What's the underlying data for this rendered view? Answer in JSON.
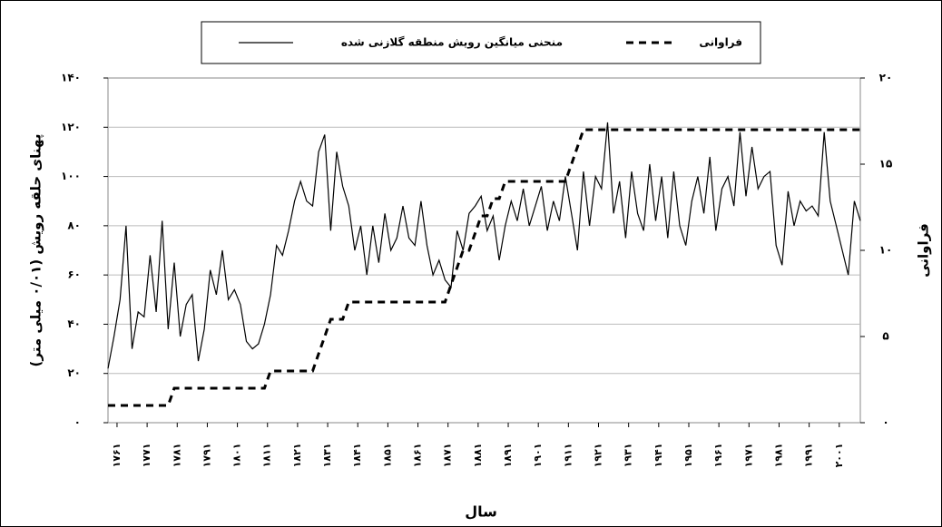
{
  "chart_data": {
    "type": "line",
    "x_label": "سال",
    "y_label": "پهنای حلقه رویش (۰/۰۱ میلی متر)",
    "y2_label": "فراوانی",
    "x": [
      1758,
      1760,
      1762,
      1764,
      1766,
      1768,
      1770,
      1772,
      1774,
      1776,
      1778,
      1780,
      1782,
      1784,
      1786,
      1788,
      1790,
      1792,
      1794,
      1796,
      1798,
      1800,
      1802,
      1804,
      1806,
      1808,
      1810,
      1812,
      1814,
      1816,
      1818,
      1820,
      1822,
      1824,
      1826,
      1828,
      1830,
      1832,
      1834,
      1836,
      1838,
      1840,
      1842,
      1844,
      1846,
      1848,
      1850,
      1852,
      1854,
      1856,
      1858,
      1860,
      1862,
      1864,
      1866,
      1868,
      1870,
      1872,
      1874,
      1876,
      1878,
      1880,
      1882,
      1884,
      1886,
      1888,
      1890,
      1892,
      1894,
      1896,
      1898,
      1900,
      1902,
      1904,
      1906,
      1908,
      1910,
      1912,
      1914,
      1916,
      1918,
      1920,
      1922,
      1924,
      1926,
      1928,
      1930,
      1932,
      1934,
      1936,
      1938,
      1940,
      1942,
      1944,
      1946,
      1948,
      1950,
      1952,
      1954,
      1956,
      1958,
      1960,
      1962,
      1964,
      1966,
      1968,
      1970,
      1972,
      1974,
      1976,
      1978,
      1980,
      1982,
      1984,
      1986,
      1988,
      1990,
      1992,
      1994,
      1996,
      1998,
      2000,
      2002,
      2004,
      2006,
      2008
    ],
    "series": [
      {
        "name": "منحنی میانگین رویش منطقه گلازنی شده",
        "color": "#000000",
        "style": "solid",
        "values": [
          22,
          35,
          50,
          80,
          30,
          45,
          43,
          68,
          45,
          82,
          38,
          65,
          35,
          48,
          52,
          25,
          38,
          62,
          52,
          70,
          50,
          54,
          48,
          33,
          30,
          32,
          40,
          52,
          72,
          68,
          78,
          90,
          98,
          90,
          88,
          110,
          117,
          78,
          110,
          96,
          88,
          70,
          80,
          60,
          80,
          65,
          85,
          70,
          75,
          88,
          75,
          72,
          90,
          72,
          60,
          66,
          58,
          55,
          78,
          70,
          85,
          88,
          92,
          78,
          84,
          66,
          80,
          90,
          82,
          95,
          80,
          88,
          96,
          78,
          90,
          82,
          100,
          85,
          70,
          102,
          80,
          100,
          95,
          122,
          85,
          98,
          75,
          102,
          85,
          78,
          105,
          82,
          100,
          75,
          102,
          80,
          72,
          90,
          100,
          85,
          108,
          78,
          95,
          100,
          88,
          118,
          92,
          112,
          95,
          100,
          102,
          72,
          64,
          94,
          80,
          90,
          86,
          88,
          84,
          118,
          90,
          80,
          70,
          60,
          90,
          82
        ]
      },
      {
        "name": "فراوانی",
        "color": "#000000",
        "style": "dashed",
        "axis": "y2",
        "values": [
          1,
          1,
          1,
          1,
          1,
          1,
          1,
          1,
          1,
          1,
          1,
          2,
          2,
          2,
          2,
          2,
          2,
          2,
          2,
          2,
          2,
          2,
          2,
          2,
          2,
          2,
          2,
          3,
          3,
          3,
          3,
          3,
          3,
          3,
          3,
          4,
          5,
          6,
          6,
          6,
          7,
          7,
          7,
          7,
          7,
          7,
          7,
          7,
          7,
          7,
          7,
          7,
          7,
          7,
          7,
          7,
          7,
          8,
          9,
          10,
          10,
          11,
          12,
          12,
          13,
          13,
          14,
          14,
          14,
          14,
          14,
          14,
          14,
          14,
          14,
          14,
          14,
          15,
          16,
          17,
          17,
          17,
          17,
          17,
          17,
          17,
          17,
          17,
          17,
          17,
          17,
          17,
          17,
          17,
          17,
          17,
          17,
          17,
          17,
          17,
          17,
          17,
          17,
          17,
          17,
          17,
          17,
          17,
          17,
          17,
          17,
          17,
          17,
          17,
          17,
          17,
          17,
          17,
          17,
          17,
          17,
          17,
          17,
          17,
          17,
          17
        ]
      }
    ],
    "xlim": [
      1758,
      2008
    ],
    "xticks": [
      {
        "value": 1761,
        "label": "۱۷۶۱"
      },
      {
        "value": 1771,
        "label": "۱۷۷۱"
      },
      {
        "value": 1781,
        "label": "۱۷۸۱"
      },
      {
        "value": 1791,
        "label": "۱۷۹۱"
      },
      {
        "value": 1801,
        "label": "۱۸۰۱"
      },
      {
        "value": 1811,
        "label": "۱۸۱۱"
      },
      {
        "value": 1821,
        "label": "۱۸۲۱"
      },
      {
        "value": 1831,
        "label": "۱۸۳۱"
      },
      {
        "value": 1841,
        "label": "۱۸۴۱"
      },
      {
        "value": 1851,
        "label": "۱۸۵۱"
      },
      {
        "value": 1861,
        "label": "۱۸۶۱"
      },
      {
        "value": 1871,
        "label": "۱۸۷۱"
      },
      {
        "value": 1881,
        "label": "۱۸۸۱"
      },
      {
        "value": 1891,
        "label": "۱۸۹۱"
      },
      {
        "value": 1901,
        "label": "۱۹۰۱"
      },
      {
        "value": 1911,
        "label": "۱۹۱۱"
      },
      {
        "value": 1921,
        "label": "۱۹۲۱"
      },
      {
        "value": 1931,
        "label": "۱۹۳۱"
      },
      {
        "value": 1941,
        "label": "۱۹۴۱"
      },
      {
        "value": 1951,
        "label": "۱۹۵۱"
      },
      {
        "value": 1961,
        "label": "۱۹۶۱"
      },
      {
        "value": 1971,
        "label": "۱۹۷۱"
      },
      {
        "value": 1981,
        "label": "۱۹۸۱"
      },
      {
        "value": 1991,
        "label": "۱۹۹۱"
      },
      {
        "value": 2001,
        "label": "۲۰۰۱"
      }
    ],
    "ylim": [
      0,
      140
    ],
    "yticks": [
      {
        "value": 0,
        "label": "۰"
      },
      {
        "value": 20,
        "label": "۲۰"
      },
      {
        "value": 40,
        "label": "۴۰"
      },
      {
        "value": 60,
        "label": "۶۰"
      },
      {
        "value": 80,
        "label": "۸۰"
      },
      {
        "value": 100,
        "label": "۱۰۰"
      },
      {
        "value": 120,
        "label": "۱۲۰"
      },
      {
        "value": 140,
        "label": "۱۴۰"
      }
    ],
    "y2lim": [
      0,
      20
    ],
    "y2ticks": [
      {
        "value": 0,
        "label": "۰"
      },
      {
        "value": 5,
        "label": "۵"
      },
      {
        "value": 10,
        "label": "۱۰"
      },
      {
        "value": 15,
        "label": "۱۵"
      },
      {
        "value": 20,
        "label": "۲۰"
      }
    ],
    "grid": true,
    "legend": "top"
  }
}
